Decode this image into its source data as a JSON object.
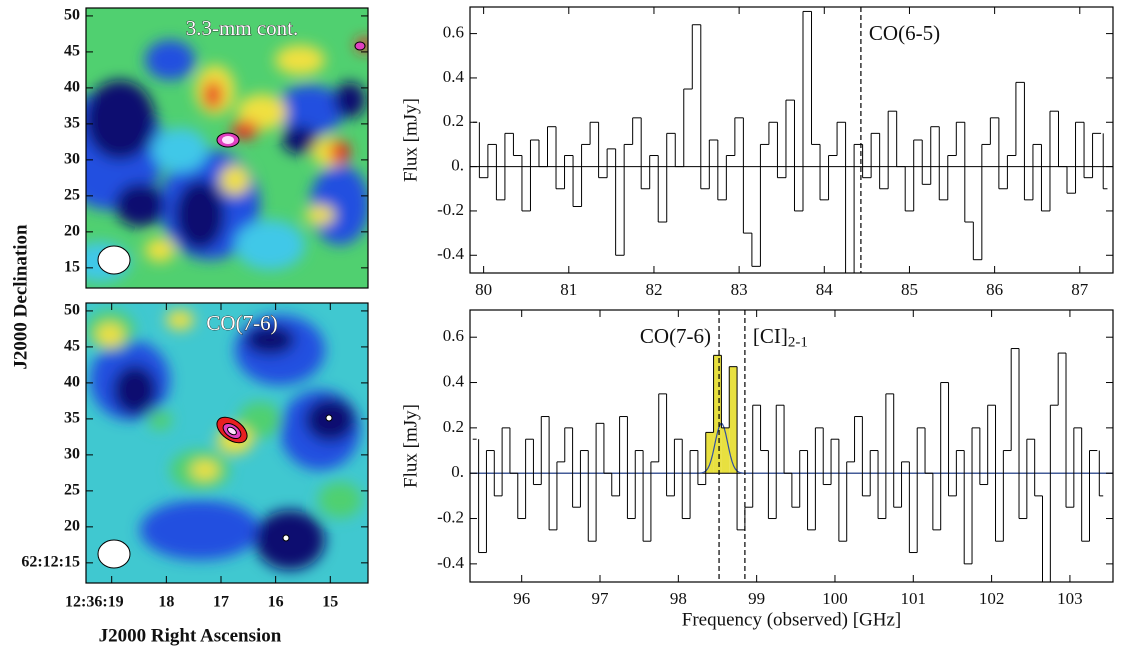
{
  "chart_data": [
    {
      "type": "map",
      "annotation": "3.3-mm cont.",
      "ylabel": "J2000 Declination",
      "xlim": [
        19.47,
        14.31
      ],
      "ylim": [
        12.2,
        51.1
      ],
      "yticks": [
        15,
        20,
        25,
        30,
        35,
        40,
        45,
        50
      ]
    },
    {
      "type": "map",
      "annotation": "CO(7-6)",
      "xlabel": "J2000 Right Ascension",
      "xlim": [
        19.47,
        14.31
      ],
      "xticks": [
        {
          "value": 19,
          "label": "12:36:19"
        },
        18,
        17,
        16,
        15
      ],
      "ylim": [
        12.2,
        51.1
      ],
      "yticks": [
        {
          "value": 15,
          "label": "62:12:15"
        },
        20,
        25,
        30,
        35,
        40,
        45,
        50
      ]
    },
    {
      "type": "step",
      "ylabel": "Flux [mJy]",
      "color": "#000000",
      "zero_line": true,
      "xlim": [
        79.84,
        87.39
      ],
      "xticks": [
        80,
        81,
        82,
        83,
        84,
        85,
        86,
        87
      ],
      "ylim": [
        -0.48,
        0.72
      ],
      "yticks": [
        -0.4,
        -0.2,
        {
          "value": 0,
          "label": "0."
        },
        0.2,
        0.4,
        0.6
      ],
      "lines": [
        {
          "x": 84.43,
          "label": "CO(6-5)"
        }
      ],
      "x": [
        79.9,
        80,
        80.1,
        80.2,
        80.3,
        80.4,
        80.5,
        80.6,
        80.7,
        80.8,
        80.9,
        81,
        81.1,
        81.2,
        81.3,
        81.4,
        81.5,
        81.6,
        81.7,
        81.8,
        81.9,
        82,
        82.1,
        82.2,
        82.3,
        82.4,
        82.5,
        82.6,
        82.7,
        82.8,
        82.9,
        83,
        83.1,
        83.2,
        83.3,
        83.4,
        83.5,
        83.6,
        83.7,
        83.8,
        83.9,
        84,
        84.1,
        84.2,
        84.3,
        84.4,
        84.5,
        84.6,
        84.7,
        84.8,
        84.9,
        85,
        85.1,
        85.2,
        85.3,
        85.4,
        85.5,
        85.6,
        85.7,
        85.8,
        85.9,
        86,
        86.1,
        86.2,
        86.3,
        86.4,
        86.5,
        86.6,
        86.7,
        86.8,
        86.9,
        87,
        87.1,
        87.2,
        87.3
      ],
      "values": [
        0.2,
        -0.05,
        0.1,
        -0.15,
        0.15,
        0.05,
        -0.2,
        0.12,
        0,
        0.18,
        -0.1,
        0.05,
        -0.18,
        0.1,
        0.2,
        -0.05,
        0.08,
        -0.4,
        0.1,
        0.22,
        -0.1,
        0.05,
        -0.25,
        0.15,
        0,
        0.35,
        0.64,
        -0.1,
        0.12,
        -0.15,
        0.05,
        0.22,
        -0.3,
        -0.45,
        0.1,
        0.2,
        -0.05,
        0.3,
        -0.2,
        0.7,
        0.1,
        -0.15,
        0.05,
        0.2,
        -0.48,
        0.1,
        -0.05,
        0.15,
        -0.1,
        0.25,
        0,
        -0.2,
        0.12,
        -0.08,
        0.18,
        -0.15,
        0.05,
        0.2,
        -0.25,
        -0.42,
        0.1,
        0.22,
        -0.1,
        0.05,
        0.38,
        -0.15,
        0.1,
        -0.2,
        0.25,
        0,
        -0.12,
        0.2,
        -0.05,
        0.15,
        -0.1
      ]
    },
    {
      "type": "step",
      "ylabel": "Flux [mJy]",
      "xlabel": "Frequency (observed) [GHz]",
      "color": "#000000",
      "zero_line": true,
      "xlim": [
        95.34,
        103.55
      ],
      "xticks": [
        96,
        97,
        98,
        99,
        100,
        101,
        102,
        103
      ],
      "ylim": [
        -0.48,
        0.72
      ],
      "yticks": [
        -0.4,
        -0.2,
        {
          "value": 0,
          "label": "0."
        },
        0.2,
        0.4,
        0.6
      ],
      "lines": [
        {
          "x": 98.52,
          "label": "CO(7-6)"
        },
        {
          "x": 98.85,
          "label": "[CI]",
          "sub": "2-1"
        }
      ],
      "highlight": {
        "range": [
          98.35,
          98.75
        ],
        "color": "#e8e040"
      },
      "fit": {
        "amplitude": 0.22,
        "center": 98.55,
        "sigma": 0.08,
        "color": "#3050a0"
      },
      "x": [
        95.4,
        95.5,
        95.6,
        95.7,
        95.8,
        95.9,
        96,
        96.1,
        96.2,
        96.3,
        96.4,
        96.5,
        96.6,
        96.7,
        96.8,
        96.9,
        97,
        97.1,
        97.2,
        97.3,
        97.4,
        97.5,
        97.6,
        97.7,
        97.8,
        97.9,
        98,
        98.1,
        98.2,
        98.3,
        98.4,
        98.5,
        98.6,
        98.7,
        98.8,
        98.9,
        99,
        99.1,
        99.2,
        99.3,
        99.4,
        99.5,
        99.6,
        99.7,
        99.8,
        99.9,
        100,
        100.1,
        100.2,
        100.3,
        100.4,
        100.5,
        100.6,
        100.7,
        100.8,
        100.9,
        101,
        101.1,
        101.2,
        101.3,
        101.4,
        101.5,
        101.6,
        101.7,
        101.8,
        101.9,
        102,
        102.1,
        102.2,
        102.3,
        102.4,
        102.5,
        102.6,
        102.7,
        102.8,
        102.9,
        103,
        103.1,
        103.2,
        103.3,
        103.4
      ],
      "values": [
        0.15,
        -0.35,
        0.1,
        -0.1,
        0.2,
        0,
        -0.2,
        0.15,
        -0.05,
        0.25,
        -0.25,
        0.05,
        0.2,
        -0.15,
        0.1,
        -0.3,
        0.22,
        0,
        -0.1,
        0.25,
        -0.2,
        0.1,
        -0.3,
        0.05,
        0.35,
        -0.1,
        0.15,
        -0.2,
        0.1,
        -0.05,
        0.18,
        0.52,
        0.2,
        0.47,
        -0.25,
        -0.15,
        0.3,
        0.1,
        -0.2,
        0.3,
        0,
        -0.15,
        0.1,
        -0.25,
        0.2,
        -0.05,
        0.15,
        -0.3,
        0.05,
        0.25,
        -0.1,
        0.1,
        -0.2,
        0.35,
        -0.15,
        0.05,
        -0.35,
        0.2,
        0,
        -0.25,
        0.4,
        -0.1,
        0.1,
        -0.4,
        0.2,
        -0.05,
        0.3,
        -0.3,
        0.1,
        0.55,
        -0.2,
        0.15,
        -0.1,
        -0.48,
        0.3,
        0.53,
        -0.15,
        0.2,
        -0.3,
        0.1,
        -0.1
      ]
    }
  ]
}
